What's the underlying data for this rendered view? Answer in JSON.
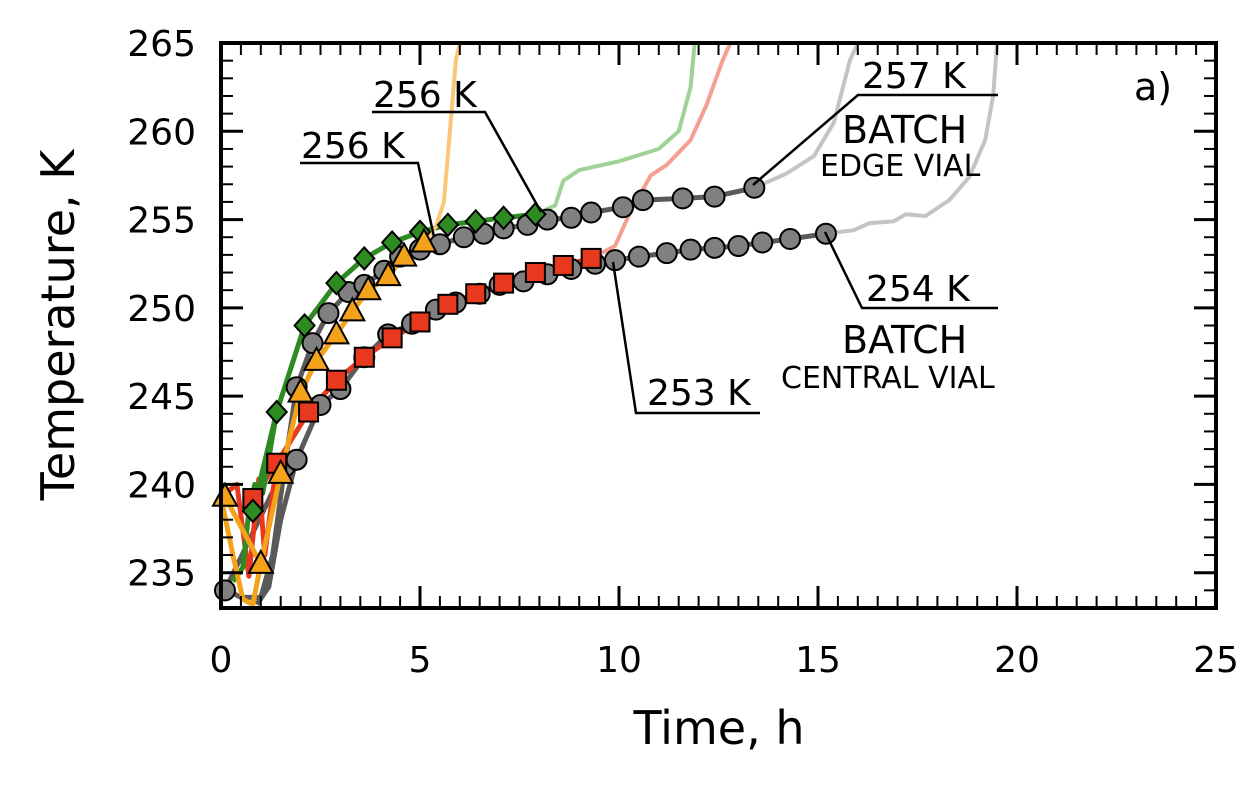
{
  "chart_data": {
    "type": "line",
    "panel_label": "a)",
    "xlabel": "Time, h",
    "ylabel": "Temperature, K",
    "xlim": [
      0,
      25
    ],
    "ylim": [
      233,
      265
    ],
    "x_ticks": [
      0,
      5,
      10,
      15,
      20,
      25
    ],
    "y_ticks": [
      235,
      240,
      245,
      250,
      255,
      260,
      265
    ],
    "grid": false,
    "series": [
      {
        "marker": "circle",
        "color": "#808080",
        "line_color": "#5a5a5a",
        "tail_color": "#c4c4c4",
        "x": [
          0.1,
          1.6,
          1.9,
          2.3,
          2.7,
          3.2,
          3.6,
          4.1,
          4.5,
          5.0,
          5.5,
          6.1,
          6.6,
          7.1,
          7.7,
          8.2,
          8.8,
          9.3,
          10.1,
          10.6,
          11.6,
          12.4,
          13.4
        ],
        "y": [
          234,
          241,
          245.5,
          248,
          249.7,
          250.9,
          251.3,
          252.1,
          252.9,
          253.3,
          253.6,
          254.0,
          254.2,
          254.5,
          254.7,
          255.0,
          255.1,
          255.4,
          255.7,
          256.1,
          256.2,
          256.3,
          256.8
        ]
      },
      {
        "marker": "circle",
        "color": "#808080",
        "line_color": "#5a5a5a",
        "tail_color": "#c4c4c4",
        "x": [
          1.9,
          2.5,
          3.0,
          3.6,
          4.2,
          4.8,
          5.4,
          5.9,
          6.5,
          7.0,
          7.6,
          8.2,
          8.8,
          9.4,
          9.9,
          10.5,
          11.2,
          11.8,
          12.4,
          13.0,
          13.6,
          14.3,
          15.2
        ],
        "y": [
          241.4,
          244.5,
          245.4,
          247.2,
          248.5,
          249.1,
          249.9,
          250.3,
          250.8,
          251.3,
          251.5,
          251.9,
          252.2,
          252.5,
          252.7,
          252.9,
          253.1,
          253.3,
          253.4,
          253.5,
          253.7,
          253.9,
          254.2
        ]
      },
      {
        "marker": "square",
        "color": "#e8391e",
        "line_color": "#e8391e",
        "tail_color": "#f4a090",
        "x": [
          0.8,
          1.4,
          2.2,
          2.9,
          3.6,
          4.3,
          5.0,
          5.7,
          6.4,
          7.1,
          7.9,
          8.6,
          9.3
        ],
        "y": [
          239.2,
          241.2,
          244.1,
          245.9,
          247.2,
          248.3,
          249.2,
          250.2,
          250.8,
          251.4,
          252.0,
          252.4,
          252.8
        ]
      },
      {
        "marker": "diamond",
        "color": "#2e8b22",
        "line_color": "#2e8b22",
        "tail_color": "#9fd294",
        "x": [
          0.8,
          1.4,
          2.1,
          2.9,
          3.6,
          4.3,
          5.0,
          5.7,
          6.4,
          7.1,
          7.9
        ],
        "y": [
          238.5,
          244.1,
          249.0,
          251.4,
          252.8,
          253.7,
          254.3,
          254.7,
          254.9,
          255.1,
          255.3
        ]
      },
      {
        "marker": "triangle",
        "color": "#f5a21b",
        "line_color": "#f5a21b",
        "tail_color": "#fac77a",
        "x": [
          0.1,
          1.0,
          1.5,
          2.0,
          2.4,
          2.9,
          3.3,
          3.7,
          4.2,
          4.6,
          5.1
        ],
        "y": [
          239.3,
          235.5,
          240.6,
          245.2,
          247.0,
          248.5,
          249.8,
          251.0,
          251.8,
          252.9,
          253.7
        ]
      }
    ],
    "annotations": [
      {
        "text": "257 K"
      },
      {
        "text": "BATCH"
      },
      {
        "text": "EDGE VIAL"
      },
      {
        "text": "254 K"
      },
      {
        "text": "BATCH"
      },
      {
        "text": "CENTRAL VIAL"
      },
      {
        "text": "256 K"
      },
      {
        "text": "256 K"
      },
      {
        "text": "253 K"
      }
    ]
  }
}
